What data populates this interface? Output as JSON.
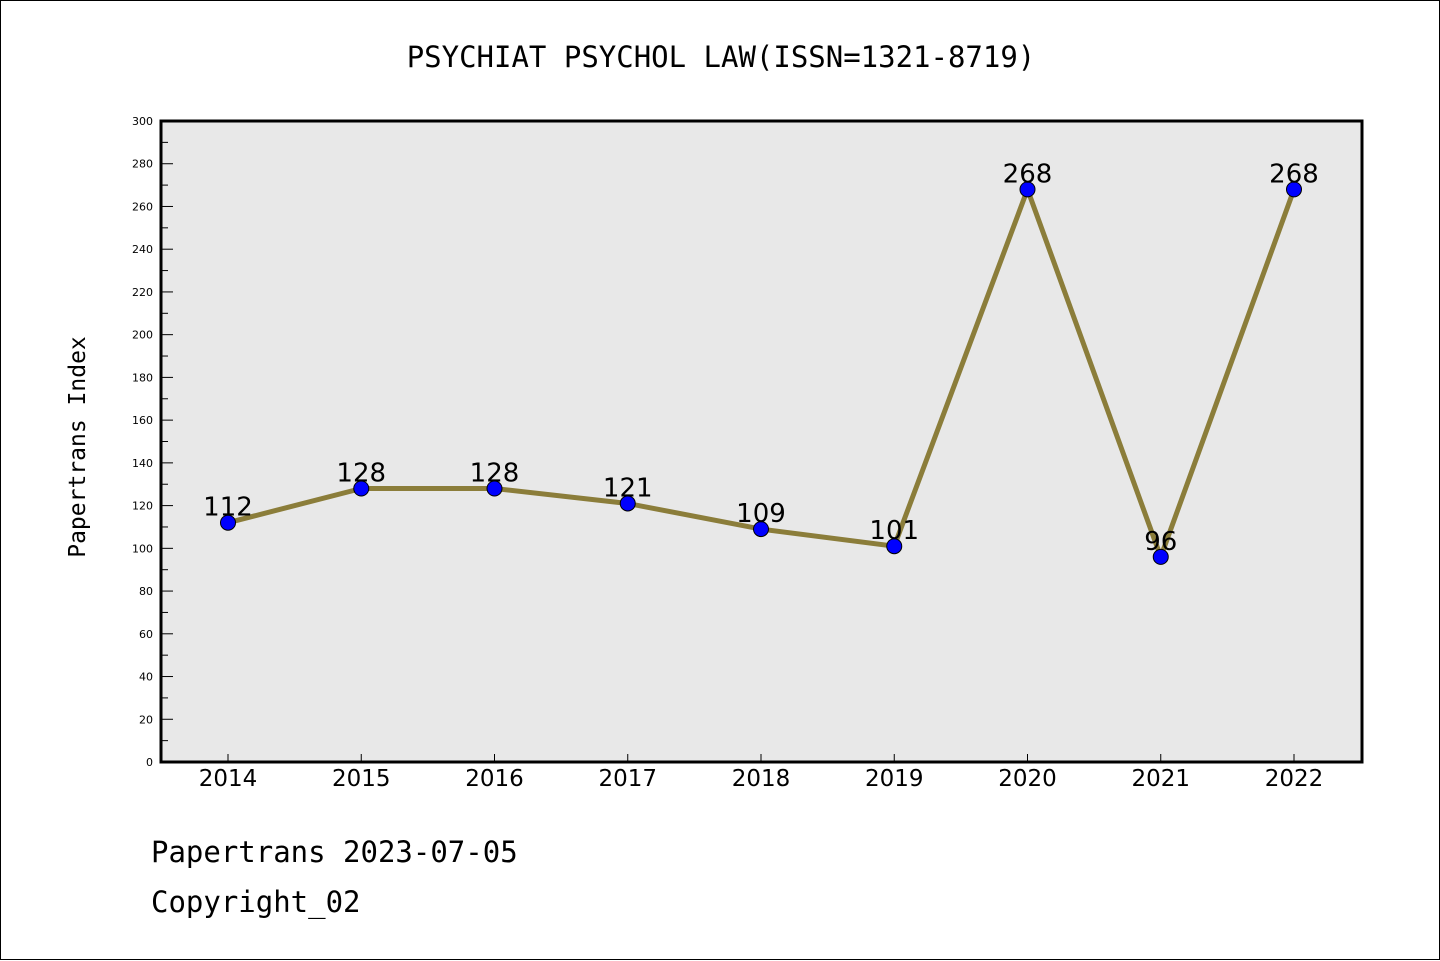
{
  "chart_data": {
    "type": "line",
    "title": "PSYCHIAT PSYCHOL LAW(ISSN=1321-8719)",
    "xlabel": "",
    "ylabel": "Papertrans Index",
    "categories": [
      "2014",
      "2015",
      "2016",
      "2017",
      "2018",
      "2019",
      "2020",
      "2021",
      "2022"
    ],
    "series": [
      {
        "values": [
          112,
          128,
          128,
          121,
          109,
          101,
          268,
          96,
          268
        ]
      }
    ],
    "ylim": [
      0,
      300
    ],
    "yticks": [
      0,
      20,
      40,
      60,
      80,
      100,
      120,
      140,
      160,
      180,
      200,
      220,
      240,
      260,
      280,
      300
    ],
    "grid": false,
    "legend": "none",
    "colors": {
      "line": "#8b7d3a",
      "marker": "#0000ff",
      "plot_background": "#e8e8e8"
    }
  },
  "footer": {
    "line1": "Papertrans 2023-07-05",
    "line2": "Copyright_02"
  }
}
